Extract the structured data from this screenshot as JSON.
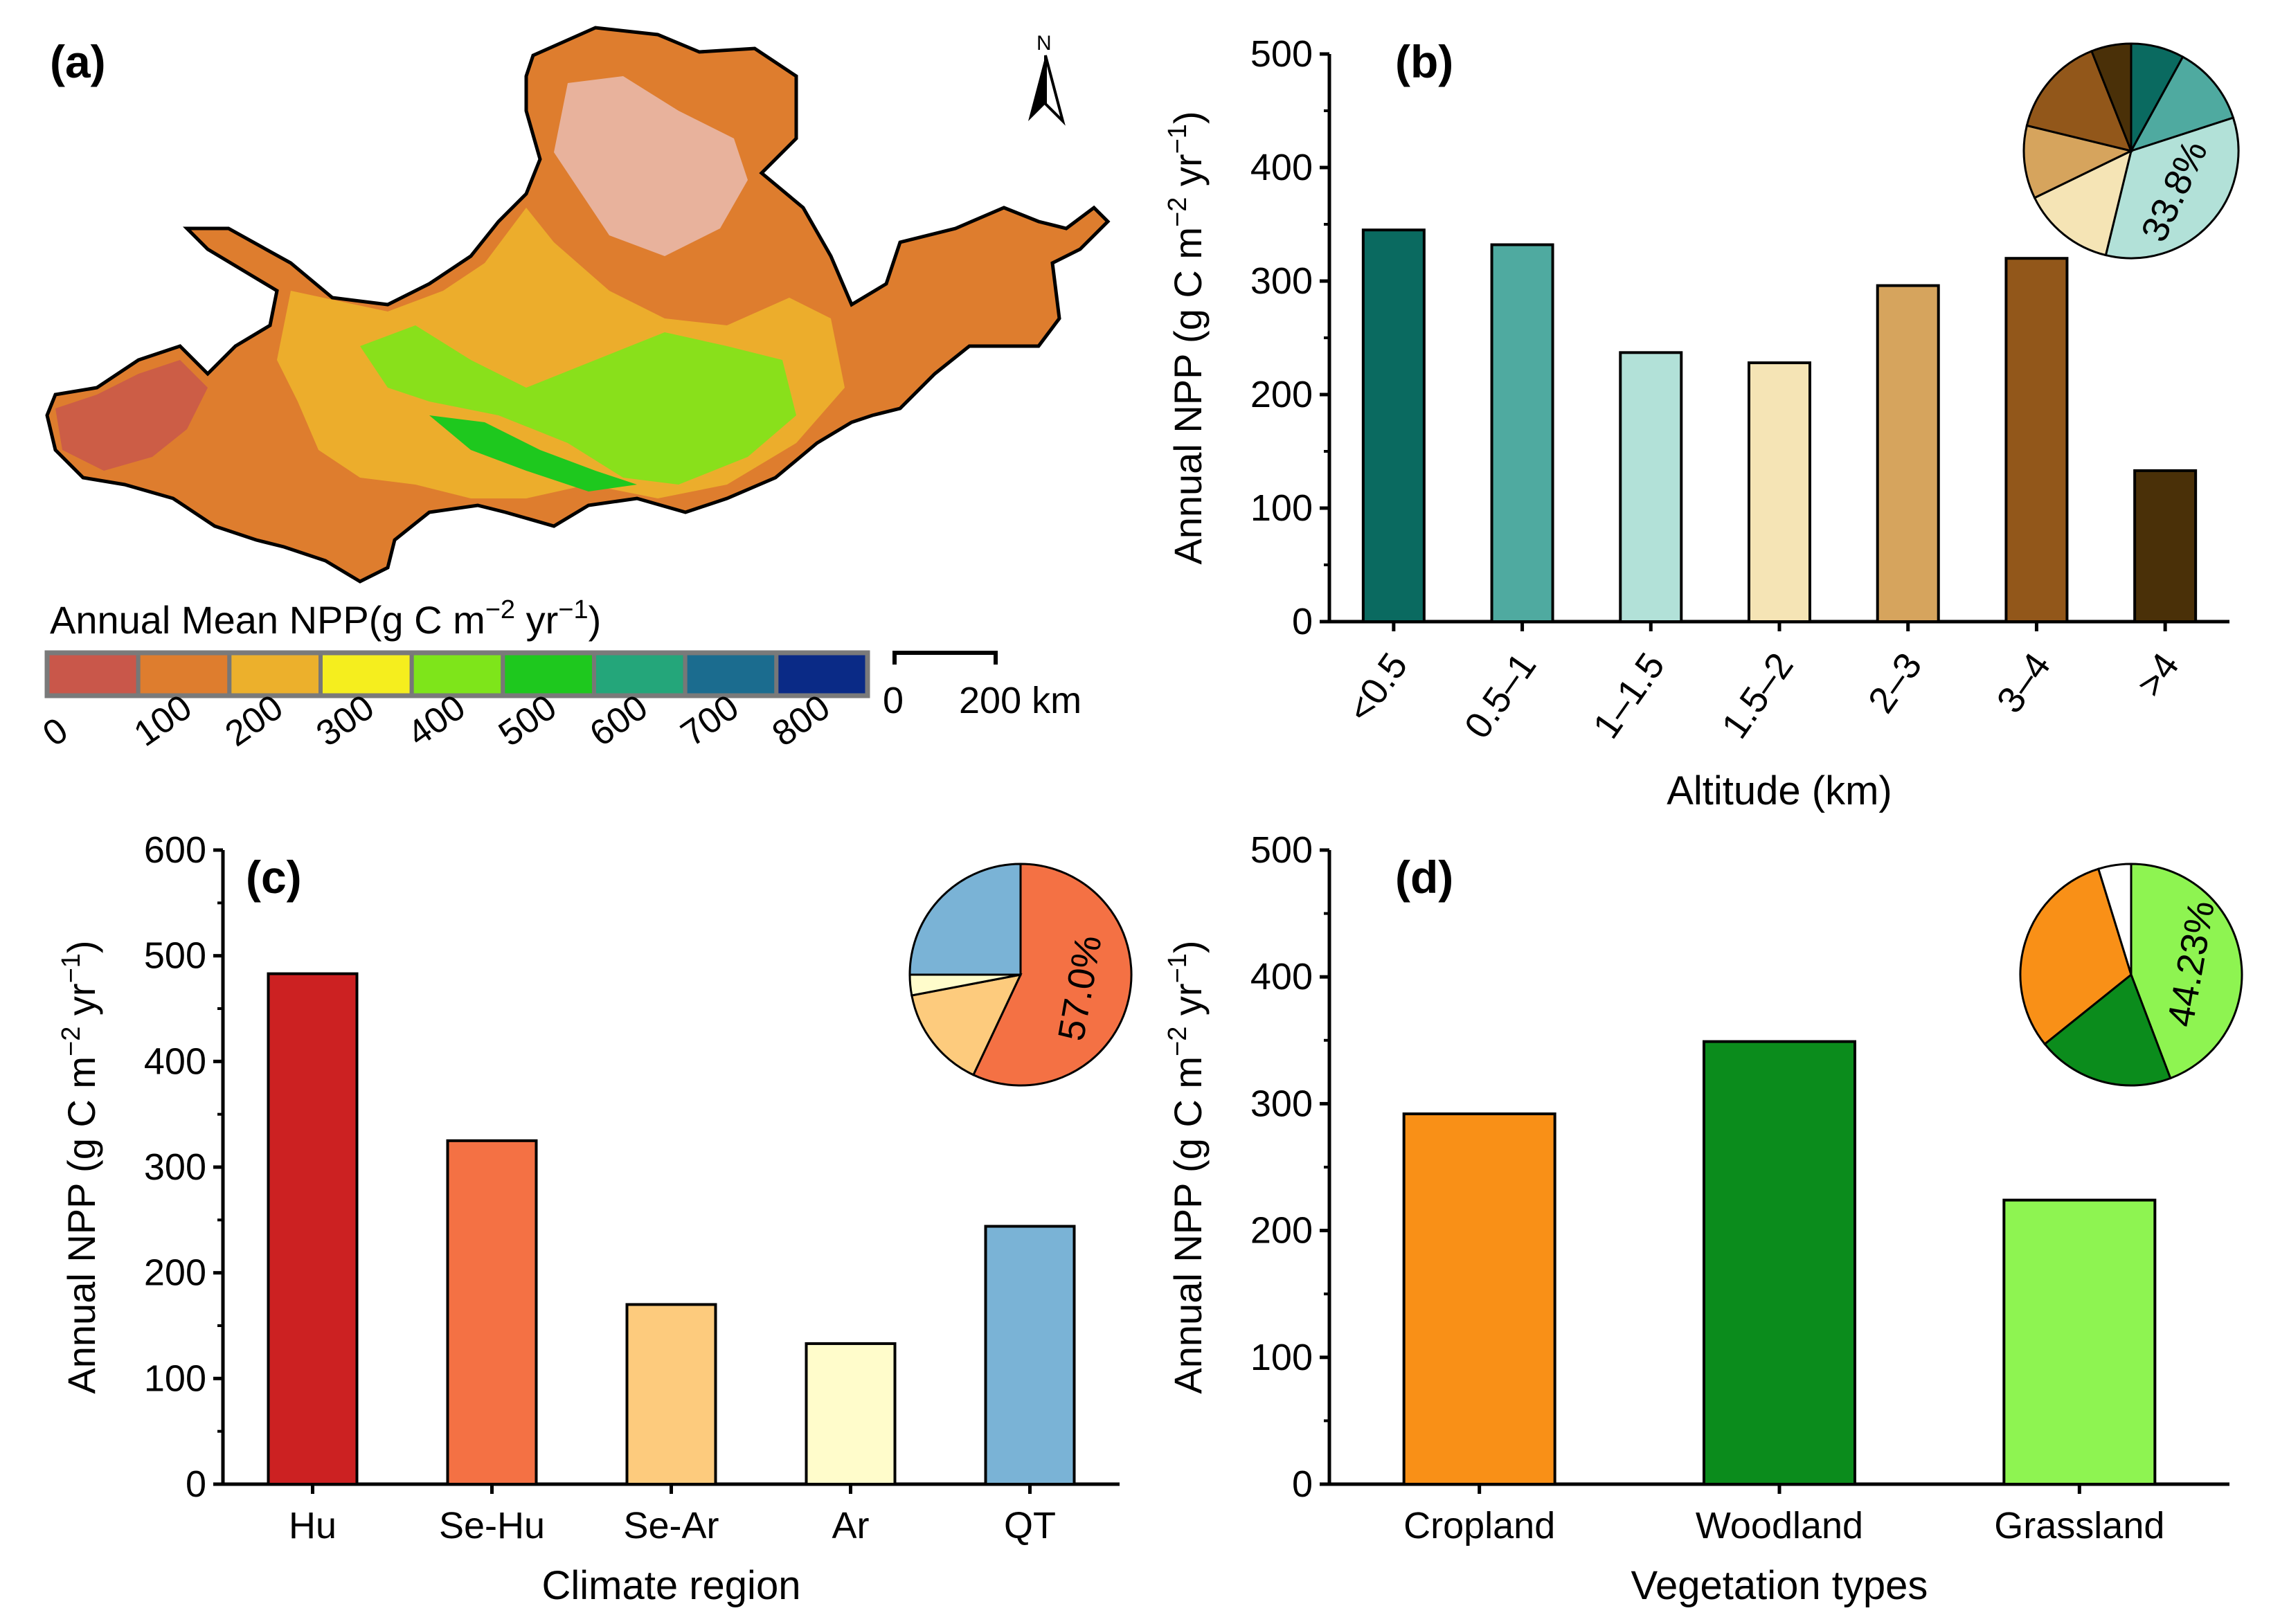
{
  "map": {
    "panel_letter": "(a)",
    "north_label": "N",
    "legend_title": "Annual Mean NPP(g C m",
    "legend_title_sup": "−2",
    "legend_title_mid": " yr",
    "legend_title_sup2": "−1",
    "legend_title_end": ")",
    "legend_colors": [
      "#c9574a",
      "#de7d2e",
      "#ecb02c",
      "#f5ee1e",
      "#7ee51a",
      "#1ec81e",
      "#24a67a",
      "#1b6c8f",
      "#0a2a86"
    ],
    "legend_ticks": [
      "0",
      "100",
      "200",
      "300",
      "400",
      "500",
      "600",
      "700",
      "800"
    ],
    "scale_zero": "0",
    "scale_label": "200 km"
  },
  "chart_data": [
    {
      "panel": "(b)",
      "type": "bar",
      "categories": [
        "<0.5",
        "0.5–1",
        "1–1.5",
        "1.5–2",
        "2–3",
        "3–4",
        ">4"
      ],
      "values": [
        345,
        332,
        237,
        228,
        296,
        320,
        133
      ],
      "colors": [
        "#0a6a60",
        "#4faaa0",
        "#b2e1d8",
        "#f5e4b5",
        "#d6a45d",
        "#92571a",
        "#4a3008"
      ],
      "ylim": [
        0,
        500
      ],
      "yticks": [
        "0",
        "100",
        "200",
        "300",
        "400",
        "500"
      ],
      "ylabel": "Annual NPP (g C m",
      "ylabel_sup": "−2",
      "ylabel_mid": " yr",
      "ylabel_sup2": "−1",
      "ylabel_end": ")",
      "xlabel": "Altitude (km)",
      "pie_label": "33.8%",
      "pie": [
        {
          "share": 8,
          "color": "#0a6a60"
        },
        {
          "share": 12,
          "color": "#4faaa0"
        },
        {
          "share": 33.8,
          "color": "#b2e1d8"
        },
        {
          "share": 14,
          "color": "#f5e4b5"
        },
        {
          "share": 11,
          "color": "#d6a45d"
        },
        {
          "share": 15.2,
          "color": "#92571a"
        },
        {
          "share": 6,
          "color": "#4a3008"
        }
      ]
    },
    {
      "panel": "(c)",
      "type": "bar",
      "categories": [
        "Hu",
        "Se-Hu",
        "Se-Ar",
        "Ar",
        "QT"
      ],
      "values": [
        483,
        325,
        170,
        133,
        244
      ],
      "colors": [
        "#cc2122",
        "#f47144",
        "#fdcb7d",
        "#fffccb",
        "#7ab3d6"
      ],
      "ylim": [
        0,
        600
      ],
      "yticks": [
        "0",
        "100",
        "200",
        "300",
        "400",
        "500",
        "600"
      ],
      "ylabel": "Annual NPP (g C m",
      "ylabel_sup": "−2",
      "ylabel_mid": " yr",
      "ylabel_sup2": "−1",
      "ylabel_end": ")",
      "xlabel": "Climate region",
      "pie_label": "57.0%",
      "pie": [
        {
          "share": 57.0,
          "color": "#f47144"
        },
        {
          "share": 15,
          "color": "#fdcb7d"
        },
        {
          "share": 3,
          "color": "#fffccb"
        },
        {
          "share": 25,
          "color": "#7ab3d6"
        }
      ]
    },
    {
      "panel": "(d)",
      "type": "bar",
      "categories": [
        "Cropland",
        "Woodland",
        "Grassland"
      ],
      "values": [
        292,
        349,
        224
      ],
      "colors": [
        "#f99017",
        "#0b8c1c",
        "#8ef451"
      ],
      "ylim": [
        0,
        500
      ],
      "yticks": [
        "0",
        "100",
        "200",
        "300",
        "400",
        "500"
      ],
      "ylabel": "Annual NPP (g C m",
      "ylabel_sup": "−2",
      "ylabel_mid": " yr",
      "ylabel_sup2": "−1",
      "ylabel_end": ")",
      "xlabel": "Vegetation types",
      "pie_label": "44.23%",
      "pie": [
        {
          "share": 44.23,
          "color": "#8ef451"
        },
        {
          "share": 20,
          "color": "#0b8c1c"
        },
        {
          "share": 31,
          "color": "#f99017"
        },
        {
          "share": 4.77,
          "color": "#ffffff"
        }
      ]
    }
  ]
}
